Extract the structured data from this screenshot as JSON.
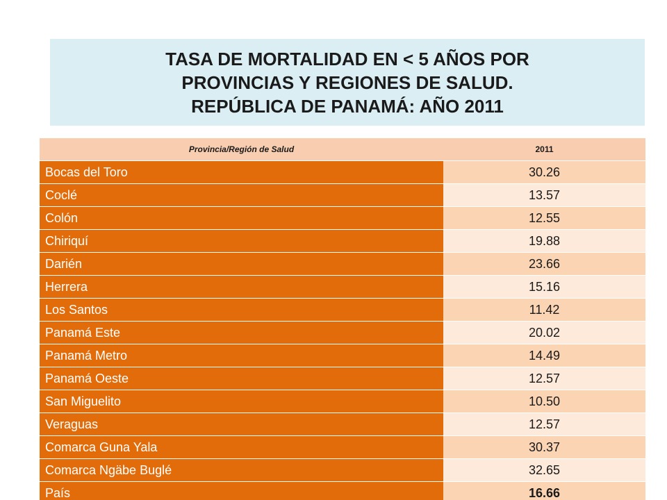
{
  "title": "TASA DE MORTALIDAD EN < 5 AÑOS  POR\nPROVINCIAS  Y REGIONES  DE SALUD.\nREPÚBLICA DE PANAMÁ: AÑO 2011",
  "table": {
    "headers": [
      "Provincia/Región de Salud",
      "2011"
    ],
    "rows": [
      {
        "name": "Bocas del Toro",
        "value": "30.26"
      },
      {
        "name": "Coclé",
        "value": "13.57"
      },
      {
        "name": "Colón",
        "value": "12.55"
      },
      {
        "name": "Chiriquí",
        "value": "19.88"
      },
      {
        "name": "Darién",
        "value": "23.66"
      },
      {
        "name": "Herrera",
        "value": "15.16"
      },
      {
        "name": "Los Santos",
        "value": "11.42"
      },
      {
        "name": "Panamá Este",
        "value": "20.02"
      },
      {
        "name": "Panamá Metro",
        "value": "14.49"
      },
      {
        "name": "Panamá Oeste",
        "value": "12.57"
      },
      {
        "name": "San Miguelito",
        "value": "10.50"
      },
      {
        "name": "Veraguas",
        "value": "12.57"
      },
      {
        "name": "Comarca Guna  Yala",
        "value": "30.37"
      },
      {
        "name": "Comarca Ngäbe  Buglé",
        "value": "32.65"
      },
      {
        "name": "País",
        "value": "16.66"
      }
    ]
  },
  "colors": {
    "title_background": "#daeef3",
    "header_background": "#f9cdb0",
    "name_cell": "#e36c0a",
    "value_cell_odd": "#fbd4b4",
    "value_cell_even": "#fdeada"
  }
}
